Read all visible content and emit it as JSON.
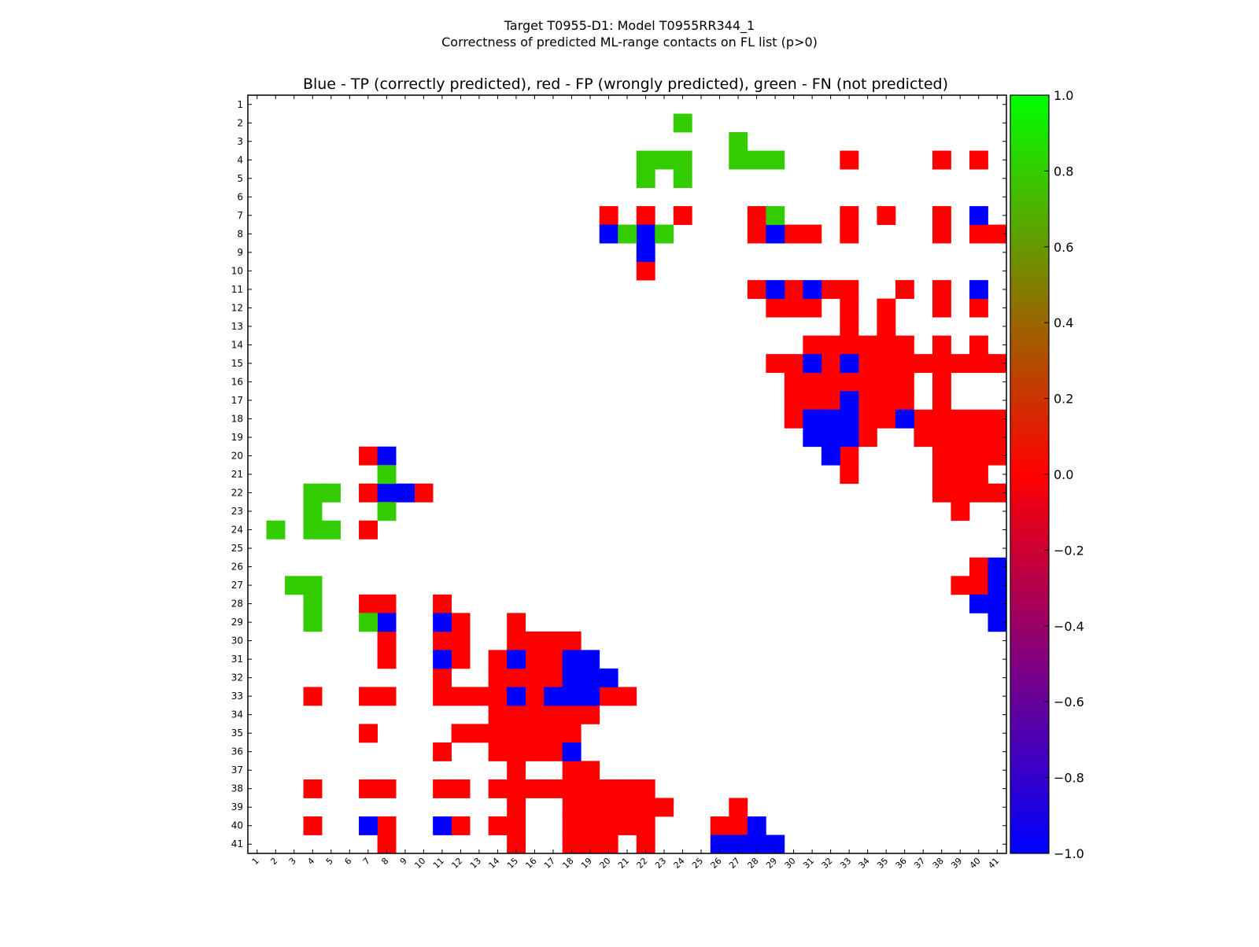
{
  "chart_data": {
    "type": "heatmap",
    "suptitle_line1": "Target T0955-D1: Model T0955RR344_1",
    "suptitle_line2": "Correctness of predicted ML-range contacts on FL list (p>0)",
    "title": "Blue - TP (correctly predicted), red - FP (wrongly predicted), green - FN (not predicted)",
    "n": 41,
    "x_ticks": [
      "1",
      "2",
      "3",
      "4",
      "5",
      "6",
      "7",
      "8",
      "9",
      "10",
      "11",
      "12",
      "13",
      "14",
      "15",
      "16",
      "17",
      "18",
      "19",
      "20",
      "21",
      "22",
      "23",
      "24",
      "25",
      "26",
      "27",
      "28",
      "29",
      "30",
      "31",
      "32",
      "33",
      "34",
      "35",
      "36",
      "37",
      "38",
      "39",
      "40",
      "41"
    ],
    "y_ticks": [
      "1",
      "2",
      "3",
      "4",
      "5",
      "6",
      "7",
      "8",
      "9",
      "10",
      "11",
      "12",
      "13",
      "14",
      "15",
      "16",
      "17",
      "18",
      "19",
      "20",
      "21",
      "22",
      "23",
      "24",
      "25",
      "26",
      "27",
      "28",
      "29",
      "30",
      "31",
      "32",
      "33",
      "34",
      "35",
      "36",
      "37",
      "38",
      "39",
      "40",
      "41"
    ],
    "colorbar": {
      "vmin": -1.0,
      "vmax": 1.0,
      "ticks": [
        {
          "value": 1.0,
          "label": "1.0"
        },
        {
          "value": 0.8,
          "label": "0.8"
        },
        {
          "value": 0.6,
          "label": "0.6"
        },
        {
          "value": 0.4,
          "label": "0.4"
        },
        {
          "value": 0.2,
          "label": "0.2"
        },
        {
          "value": 0.0,
          "label": "0.0"
        },
        {
          "value": -0.2,
          "label": "−0.2"
        },
        {
          "value": -0.4,
          "label": "−0.4"
        },
        {
          "value": -0.6,
          "label": "−0.6"
        },
        {
          "value": -0.8,
          "label": "−0.8"
        },
        {
          "value": -1.0,
          "label": "−1.0"
        }
      ],
      "stops": [
        {
          "value": -1.0,
          "color": "#0000ff"
        },
        {
          "value": 0.0,
          "color": "#ff0000"
        },
        {
          "value": 1.0,
          "color": "#00ff00"
        }
      ]
    },
    "categories": [
      {
        "name": "TP",
        "value": -1.0,
        "color": "#0000ff"
      },
      {
        "name": "FP",
        "value": 0.0,
        "color": "#ff0000"
      },
      {
        "name": "FN",
        "value": 0.8,
        "color": "#33cc00"
      }
    ],
    "cells": {
      "TP": [
        [
          7,
          40
        ],
        [
          8,
          20
        ],
        [
          8,
          22
        ],
        [
          8,
          29
        ],
        [
          9,
          22
        ],
        [
          11,
          29
        ],
        [
          11,
          31
        ],
        [
          11,
          40
        ],
        [
          15,
          31
        ],
        [
          15,
          33
        ],
        [
          17,
          33
        ],
        [
          18,
          31
        ],
        [
          18,
          32
        ],
        [
          18,
          33
        ],
        [
          18,
          36
        ],
        [
          19,
          31
        ],
        [
          19,
          32
        ],
        [
          19,
          33
        ],
        [
          20,
          32
        ],
        [
          26,
          41
        ],
        [
          27,
          41
        ],
        [
          28,
          40
        ],
        [
          28,
          41
        ],
        [
          29,
          41
        ],
        [
          20,
          8
        ],
        [
          22,
          8
        ],
        [
          22,
          9
        ],
        [
          29,
          8
        ],
        [
          29,
          11
        ],
        [
          31,
          11
        ],
        [
          31,
          15
        ],
        [
          31,
          18
        ],
        [
          31,
          19
        ],
        [
          32,
          18
        ],
        [
          32,
          19
        ],
        [
          32,
          20
        ],
        [
          33,
          15
        ],
        [
          33,
          17
        ],
        [
          33,
          18
        ],
        [
          33,
          19
        ],
        [
          36,
          18
        ],
        [
          40,
          7
        ],
        [
          40,
          11
        ],
        [
          40,
          28
        ],
        [
          41,
          26
        ],
        [
          41,
          27
        ],
        [
          41,
          28
        ],
        [
          41,
          29
        ]
      ],
      "FN": [
        [
          2,
          24
        ],
        [
          3,
          27
        ],
        [
          4,
          22
        ],
        [
          4,
          23
        ],
        [
          4,
          24
        ],
        [
          4,
          27
        ],
        [
          4,
          28
        ],
        [
          4,
          29
        ],
        [
          5,
          22
        ],
        [
          5,
          24
        ],
        [
          7,
          29
        ],
        [
          8,
          21
        ],
        [
          8,
          23
        ],
        [
          21,
          8
        ],
        [
          22,
          4
        ],
        [
          22,
          5
        ],
        [
          23,
          4
        ],
        [
          23,
          8
        ],
        [
          24,
          2
        ],
        [
          24,
          4
        ],
        [
          24,
          5
        ],
        [
          27,
          3
        ],
        [
          27,
          4
        ],
        [
          28,
          4
        ],
        [
          29,
          4
        ],
        [
          29,
          7
        ]
      ],
      "FP": [
        [
          4,
          33
        ],
        [
          4,
          38
        ],
        [
          4,
          40
        ],
        [
          7,
          20
        ],
        [
          7,
          22
        ],
        [
          7,
          24
        ],
        [
          7,
          28
        ],
        [
          7,
          33
        ],
        [
          7,
          35
        ],
        [
          7,
          38
        ],
        [
          8,
          28
        ],
        [
          8,
          30
        ],
        [
          8,
          31
        ],
        [
          8,
          33
        ],
        [
          8,
          38
        ],
        [
          8,
          40
        ],
        [
          8,
          41
        ],
        [
          10,
          22
        ],
        [
          11,
          28
        ],
        [
          11,
          30
        ],
        [
          11,
          32
        ],
        [
          11,
          33
        ],
        [
          11,
          36
        ],
        [
          11,
          38
        ],
        [
          12,
          29
        ],
        [
          12,
          30
        ],
        [
          12,
          31
        ],
        [
          12,
          33
        ],
        [
          12,
          35
        ],
        [
          12,
          38
        ],
        [
          12,
          40
        ],
        [
          13,
          33
        ],
        [
          13,
          35
        ],
        [
          14,
          31
        ],
        [
          14,
          32
        ],
        [
          14,
          33
        ],
        [
          14,
          34
        ],
        [
          14,
          35
        ],
        [
          14,
          36
        ],
        [
          14,
          38
        ],
        [
          14,
          40
        ],
        [
          15,
          29
        ],
        [
          15,
          30
        ],
        [
          15,
          32
        ],
        [
          15,
          34
        ],
        [
          15,
          35
        ],
        [
          15,
          36
        ],
        [
          15,
          37
        ],
        [
          15,
          38
        ],
        [
          15,
          39
        ],
        [
          15,
          40
        ],
        [
          15,
          41
        ],
        [
          16,
          30
        ],
        [
          16,
          31
        ],
        [
          16,
          32
        ],
        [
          16,
          33
        ],
        [
          16,
          34
        ],
        [
          16,
          35
        ],
        [
          16,
          36
        ],
        [
          16,
          38
        ],
        [
          17,
          30
        ],
        [
          17,
          31
        ],
        [
          17,
          32
        ],
        [
          17,
          34
        ],
        [
          17,
          35
        ],
        [
          17,
          36
        ],
        [
          17,
          38
        ],
        [
          18,
          30
        ],
        [
          18,
          34
        ],
        [
          18,
          35
        ],
        [
          18,
          37
        ],
        [
          18,
          38
        ],
        [
          18,
          39
        ],
        [
          18,
          40
        ],
        [
          18,
          41
        ],
        [
          19,
          34
        ],
        [
          19,
          37
        ],
        [
          19,
          38
        ],
        [
          19,
          39
        ],
        [
          19,
          40
        ],
        [
          19,
          41
        ],
        [
          20,
          33
        ],
        [
          20,
          38
        ],
        [
          20,
          39
        ],
        [
          20,
          40
        ],
        [
          20,
          41
        ],
        [
          21,
          33
        ],
        [
          21,
          38
        ],
        [
          21,
          39
        ],
        [
          21,
          40
        ],
        [
          22,
          38
        ],
        [
          22,
          39
        ],
        [
          22,
          40
        ],
        [
          22,
          41
        ],
        [
          23,
          39
        ],
        [
          26,
          40
        ],
        [
          27,
          39
        ],
        [
          27,
          40
        ],
        [
          20,
          7
        ],
        [
          22,
          7
        ],
        [
          22,
          10
        ],
        [
          24,
          7
        ],
        [
          28,
          7
        ],
        [
          28,
          8
        ],
        [
          28,
          11
        ],
        [
          29,
          12
        ],
        [
          29,
          15
        ],
        [
          30,
          8
        ],
        [
          30,
          11
        ],
        [
          30,
          12
        ],
        [
          30,
          15
        ],
        [
          30,
          16
        ],
        [
          30,
          17
        ],
        [
          30,
          18
        ],
        [
          31,
          8
        ],
        [
          31,
          12
        ],
        [
          31,
          14
        ],
        [
          31,
          16
        ],
        [
          31,
          17
        ],
        [
          32,
          11
        ],
        [
          32,
          14
        ],
        [
          32,
          15
        ],
        [
          32,
          16
        ],
        [
          32,
          17
        ],
        [
          33,
          4
        ],
        [
          33,
          7
        ],
        [
          33,
          8
        ],
        [
          33,
          11
        ],
        [
          33,
          12
        ],
        [
          33,
          13
        ],
        [
          33,
          14
        ],
        [
          33,
          16
        ],
        [
          33,
          20
        ],
        [
          33,
          21
        ],
        [
          34,
          14
        ],
        [
          34,
          15
        ],
        [
          34,
          16
        ],
        [
          34,
          17
        ],
        [
          34,
          18
        ],
        [
          34,
          19
        ],
        [
          35,
          7
        ],
        [
          35,
          12
        ],
        [
          35,
          13
        ],
        [
          35,
          14
        ],
        [
          35,
          15
        ],
        [
          35,
          16
        ],
        [
          35,
          17
        ],
        [
          35,
          18
        ],
        [
          36,
          11
        ],
        [
          36,
          14
        ],
        [
          36,
          15
        ],
        [
          36,
          16
        ],
        [
          36,
          17
        ],
        [
          37,
          15
        ],
        [
          37,
          18
        ],
        [
          37,
          19
        ],
        [
          38,
          4
        ],
        [
          38,
          7
        ],
        [
          38,
          8
        ],
        [
          38,
          11
        ],
        [
          38,
          12
        ],
        [
          38,
          14
        ],
        [
          38,
          15
        ],
        [
          38,
          16
        ],
        [
          38,
          17
        ],
        [
          38,
          18
        ],
        [
          38,
          19
        ],
        [
          38,
          20
        ],
        [
          38,
          21
        ],
        [
          38,
          22
        ],
        [
          39,
          15
        ],
        [
          39,
          18
        ],
        [
          39,
          19
        ],
        [
          39,
          20
        ],
        [
          39,
          21
        ],
        [
          39,
          22
        ],
        [
          39,
          23
        ],
        [
          39,
          27
        ],
        [
          40,
          4
        ],
        [
          40,
          8
        ],
        [
          40,
          12
        ],
        [
          40,
          14
        ],
        [
          40,
          15
        ],
        [
          40,
          18
        ],
        [
          40,
          19
        ],
        [
          40,
          20
        ],
        [
          40,
          21
        ],
        [
          40,
          22
        ],
        [
          40,
          26
        ],
        [
          40,
          27
        ],
        [
          41,
          8
        ],
        [
          41,
          15
        ],
        [
          41,
          18
        ],
        [
          41,
          19
        ],
        [
          41,
          20
        ],
        [
          41,
          22
        ]
      ]
    }
  }
}
